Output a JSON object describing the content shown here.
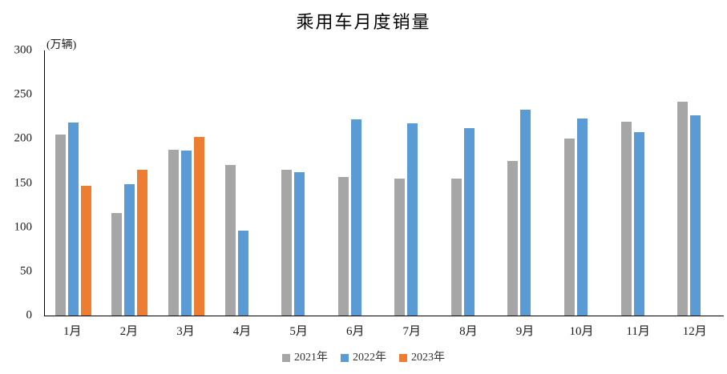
{
  "chart_data": {
    "type": "bar",
    "title": "乘用车月度销量",
    "ylabel": "(万辆)",
    "xlabel": "",
    "ylim": [
      0,
      300
    ],
    "yticks": [
      0,
      50,
      100,
      150,
      200,
      250,
      300
    ],
    "grid": false,
    "legend_position": "bottom-center",
    "categories": [
      "1月",
      "2月",
      "3月",
      "4月",
      "5月",
      "6月",
      "7月",
      "8月",
      "9月",
      "10月",
      "11月",
      "12月"
    ],
    "series": [
      {
        "name": "2021年",
        "key": "2021",
        "color": "#A6A6A6",
        "values": [
          204.5,
          115.6,
          187.4,
          170.4,
          164.6,
          156.9,
          155.1,
          155.2,
          175.1,
          200.7,
          219.2,
          242.2
        ]
      },
      {
        "name": "2022年",
        "key": "2022",
        "color": "#5B9BD5",
        "values": [
          218.6,
          148.7,
          186.4,
          96.5,
          162.3,
          222.2,
          217.4,
          212.5,
          233.2,
          223.1,
          207.5,
          226.3
        ]
      },
      {
        "name": "2023年",
        "key": "2023",
        "color": "#ED7D31",
        "values": [
          146.9,
          165.3,
          201.7,
          null,
          null,
          null,
          null,
          null,
          null,
          null,
          null,
          null
        ]
      }
    ]
  },
  "layout_colors": {
    "axis": "#000000",
    "background": "#FFFFFF"
  }
}
